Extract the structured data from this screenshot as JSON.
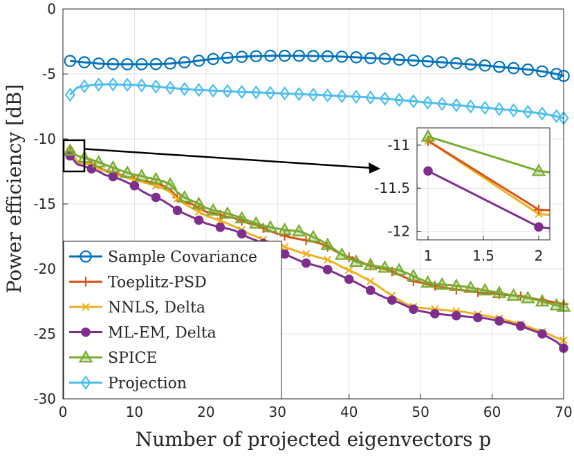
{
  "chart_data": {
    "type": "line",
    "title": "",
    "xlabel": "Number of projected eigenvectors p",
    "ylabel": "Power efficiency [dB]",
    "xlim": [
      0,
      70
    ],
    "ylim": [
      -30,
      0
    ],
    "xticks": [
      0,
      10,
      20,
      30,
      40,
      50,
      60,
      70
    ],
    "yticks": [
      0,
      -5,
      -10,
      -15,
      -20,
      -25,
      -30
    ],
    "grid": true,
    "legend_position": "bottom-left",
    "x": [
      1,
      2,
      3,
      4,
      5,
      6,
      7,
      8,
      9,
      10,
      11,
      12,
      13,
      14,
      15,
      16,
      17,
      18,
      19,
      20,
      21,
      22,
      23,
      24,
      25,
      26,
      27,
      28,
      29,
      30,
      31,
      32,
      33,
      34,
      35,
      36,
      37,
      38,
      39,
      40,
      41,
      42,
      43,
      44,
      45,
      46,
      47,
      48,
      49,
      50,
      51,
      52,
      53,
      54,
      55,
      56,
      57,
      58,
      59,
      60,
      61,
      62,
      63,
      64,
      65,
      66,
      67,
      68,
      69,
      70
    ],
    "series": [
      {
        "name": "Sample Covariance",
        "color": "#0072BD",
        "marker": "circle",
        "values": [
          -4.0,
          -4.05,
          -4.1,
          -4.15,
          -4.2,
          -4.22,
          -4.24,
          -4.25,
          -4.25,
          -4.25,
          -4.25,
          -4.25,
          -4.24,
          -4.22,
          -4.2,
          -4.15,
          -4.1,
          -4.05,
          -3.98,
          -3.9,
          -3.85,
          -3.8,
          -3.75,
          -3.7,
          -3.68,
          -3.65,
          -3.63,
          -3.62,
          -3.6,
          -3.6,
          -3.6,
          -3.6,
          -3.6,
          -3.61,
          -3.62,
          -3.63,
          -3.64,
          -3.65,
          -3.67,
          -3.7,
          -3.72,
          -3.75,
          -3.78,
          -3.8,
          -3.83,
          -3.86,
          -3.9,
          -3.93,
          -3.96,
          -4.0,
          -4.03,
          -4.06,
          -4.1,
          -4.14,
          -4.18,
          -4.22,
          -4.26,
          -4.3,
          -4.35,
          -4.4,
          -4.45,
          -4.5,
          -4.55,
          -4.6,
          -4.66,
          -4.72,
          -4.8,
          -4.9,
          -5.0,
          -5.15
        ]
      },
      {
        "name": "Toeplitz-PSD",
        "color": "#D95319",
        "marker": "plus",
        "values": [
          -10.95,
          -11.75,
          -11.8,
          -11.95,
          -12.2,
          -12.45,
          -12.6,
          -12.75,
          -12.95,
          -13.1,
          -13.2,
          -13.3,
          -13.4,
          -13.6,
          -13.9,
          -14.5,
          -14.9,
          -15.0,
          -15.3,
          -15.6,
          -15.7,
          -15.85,
          -16.0,
          -16.1,
          -16.3,
          -16.5,
          -16.6,
          -16.85,
          -17.1,
          -17.3,
          -17.45,
          -17.6,
          -17.7,
          -17.8,
          -17.9,
          -18.05,
          -18.3,
          -18.6,
          -18.9,
          -19.1,
          -19.3,
          -19.55,
          -19.75,
          -19.9,
          -20.0,
          -20.2,
          -20.45,
          -20.7,
          -20.95,
          -21.05,
          -21.2,
          -21.3,
          -21.4,
          -21.5,
          -21.6,
          -21.65,
          -21.7,
          -21.8,
          -21.85,
          -21.9,
          -21.95,
          -22.0,
          -22.05,
          -22.1,
          -22.2,
          -22.3,
          -22.4,
          -22.5,
          -22.6,
          -22.7
        ]
      },
      {
        "name": "NNLS, Delta",
        "color": "#EDB120",
        "marker": "x",
        "values": [
          -10.95,
          -11.8,
          -11.9,
          -12.0,
          -12.3,
          -12.5,
          -12.7,
          -12.85,
          -13.0,
          -13.15,
          -13.3,
          -13.45,
          -13.6,
          -13.8,
          -14.1,
          -14.6,
          -15.0,
          -15.3,
          -15.6,
          -15.9,
          -16.1,
          -16.3,
          -16.5,
          -16.75,
          -17.0,
          -17.3,
          -17.5,
          -17.75,
          -17.95,
          -18.1,
          -18.3,
          -18.5,
          -18.7,
          -18.85,
          -19.0,
          -19.15,
          -19.3,
          -19.55,
          -19.85,
          -20.1,
          -20.35,
          -20.65,
          -20.95,
          -21.3,
          -21.7,
          -22.05,
          -22.4,
          -22.7,
          -22.9,
          -23.0,
          -23.05,
          -23.1,
          -23.15,
          -23.2,
          -23.25,
          -23.3,
          -23.4,
          -23.5,
          -23.6,
          -23.7,
          -23.8,
          -23.95,
          -24.1,
          -24.25,
          -24.45,
          -24.65,
          -24.85,
          -25.05,
          -25.3,
          -25.5
        ]
      },
      {
        "name": "ML-EM, Delta",
        "color": "#7E2F8E",
        "marker": "dot",
        "values": [
          -11.3,
          -11.95,
          -12.1,
          -12.3,
          -12.5,
          -12.8,
          -12.9,
          -13.1,
          -13.35,
          -13.6,
          -14.0,
          -14.3,
          -14.5,
          -14.75,
          -15.1,
          -15.5,
          -15.75,
          -16.0,
          -16.25,
          -16.5,
          -16.65,
          -16.8,
          -16.9,
          -17.05,
          -17.3,
          -17.6,
          -17.8,
          -18.05,
          -18.35,
          -18.6,
          -18.85,
          -19.1,
          -19.35,
          -19.55,
          -19.7,
          -19.85,
          -20.05,
          -20.3,
          -20.55,
          -20.8,
          -21.05,
          -21.35,
          -21.65,
          -21.95,
          -22.2,
          -22.4,
          -22.6,
          -22.85,
          -23.1,
          -23.25,
          -23.35,
          -23.45,
          -23.5,
          -23.55,
          -23.6,
          -23.65,
          -23.7,
          -23.75,
          -23.8,
          -23.9,
          -24.0,
          -24.1,
          -24.25,
          -24.4,
          -24.6,
          -24.8,
          -25.0,
          -25.3,
          -25.6,
          -26.1
        ]
      },
      {
        "name": "SPICE",
        "color": "#77AC30",
        "marker": "triangle",
        "values": [
          -10.9,
          -11.3,
          -11.45,
          -11.6,
          -11.8,
          -12.0,
          -12.2,
          -12.4,
          -12.6,
          -12.75,
          -12.85,
          -13.0,
          -13.1,
          -13.25,
          -13.5,
          -14.1,
          -14.5,
          -14.75,
          -15.0,
          -15.3,
          -15.5,
          -15.6,
          -15.75,
          -15.9,
          -16.1,
          -16.3,
          -16.5,
          -16.65,
          -16.8,
          -16.9,
          -17.0,
          -17.05,
          -17.1,
          -17.3,
          -17.55,
          -17.8,
          -18.15,
          -18.5,
          -18.9,
          -19.2,
          -19.45,
          -19.6,
          -19.7,
          -19.8,
          -19.9,
          -20.0,
          -20.1,
          -20.3,
          -20.55,
          -20.8,
          -21.05,
          -21.15,
          -21.2,
          -21.25,
          -21.3,
          -21.35,
          -21.45,
          -21.55,
          -21.65,
          -21.75,
          -21.85,
          -21.95,
          -22.05,
          -22.15,
          -22.25,
          -22.35,
          -22.5,
          -22.65,
          -22.8,
          -22.9
        ]
      },
      {
        "name": "Projection",
        "color": "#4DBEEE",
        "marker": "diamond",
        "values": [
          -6.6,
          -6.05,
          -5.95,
          -5.85,
          -5.82,
          -5.8,
          -5.8,
          -5.82,
          -5.83,
          -5.85,
          -5.88,
          -5.92,
          -5.97,
          -6.02,
          -6.07,
          -6.12,
          -6.16,
          -6.2,
          -6.23,
          -6.26,
          -6.28,
          -6.3,
          -6.32,
          -6.35,
          -6.38,
          -6.4,
          -6.42,
          -6.44,
          -6.46,
          -6.48,
          -6.5,
          -6.52,
          -6.55,
          -6.57,
          -6.6,
          -6.62,
          -6.65,
          -6.67,
          -6.7,
          -6.72,
          -6.75,
          -6.78,
          -6.82,
          -6.86,
          -6.9,
          -6.95,
          -7.0,
          -7.05,
          -7.1,
          -7.15,
          -7.2,
          -7.25,
          -7.3,
          -7.35,
          -7.4,
          -7.45,
          -7.5,
          -7.55,
          -7.6,
          -7.65,
          -7.7,
          -7.75,
          -7.8,
          -7.86,
          -7.92,
          -7.98,
          -8.05,
          -8.15,
          -8.25,
          -8.4
        ]
      }
    ],
    "inset": {
      "description": "zoom on p in [1, 3]",
      "xlim": [
        0.9,
        2.1
      ],
      "ylim": [
        -12.1,
        -10.8
      ],
      "xticks": [
        1,
        1.5,
        2
      ],
      "xtick_labels": [
        "1",
        "1.5",
        "2"
      ],
      "yticks": [
        -11,
        -11.5,
        -12
      ],
      "ytick_labels": [
        "-11",
        "-11.5",
        "-12"
      ]
    }
  }
}
